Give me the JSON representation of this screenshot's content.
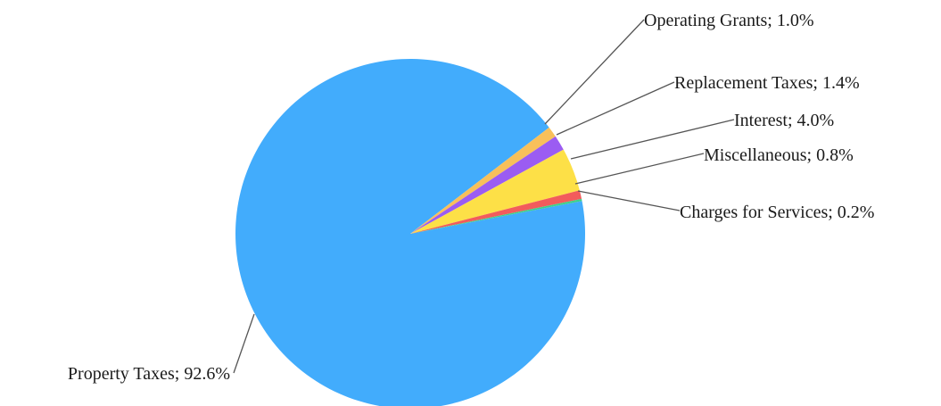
{
  "chart_data": {
    "type": "pie",
    "title": "",
    "slices": [
      {
        "label": "Property Taxes; 92.6%",
        "value": 92.6,
        "color": "#42acfc"
      },
      {
        "label": "Operating Grants; 1.0%",
        "value": 1.0,
        "color": "#f8c05a"
      },
      {
        "label": "Replacement Taxes; 1.4%",
        "value": 1.4,
        "color": "#9b5cf2"
      },
      {
        "label": "Interest; 4.0%",
        "value": 4.0,
        "color": "#fde047"
      },
      {
        "label": "Miscellaneous; 0.8%",
        "value": 0.8,
        "color": "#f25c5c"
      },
      {
        "label": "Charges for Services; 0.2%",
        "value": 0.2,
        "color": "#3fd08a"
      }
    ]
  }
}
